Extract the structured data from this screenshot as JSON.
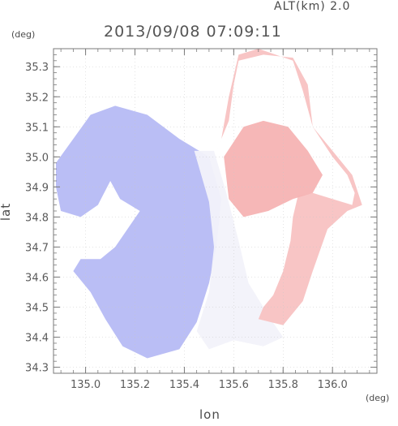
{
  "header": {
    "alt_label": "ALT(km) 2.0",
    "timestamp": "2013/09/08 07:09:11"
  },
  "colors": {
    "frame": "#7a7a7a",
    "grid": "#c8c8c8",
    "negative": "#9aa0f0",
    "neutral": "#f2f2fa",
    "positive": "#f4a0a0"
  },
  "chart_data": {
    "type": "heatmap",
    "title": "2013/09/08 07:09:11",
    "altitude_label": "ALT(km) 2.0",
    "xlabel": "lon",
    "ylabel": "lat",
    "xunit": "(deg)",
    "yunit": "(deg)",
    "xlim": [
      134.87,
      136.18
    ],
    "ylim": [
      34.28,
      35.36
    ],
    "xticks": [
      135.0,
      135.2,
      135.4,
      135.6,
      135.8,
      136.0
    ],
    "yticks": [
      34.3,
      34.4,
      34.5,
      34.6,
      34.7,
      34.8,
      34.9,
      35.0,
      35.1,
      35.2,
      35.3
    ],
    "xtick_labels": [
      "135.0",
      "135.2",
      "135.4",
      "135.6",
      "135.8",
      "136.0"
    ],
    "ytick_labels": [
      "34.3",
      "34.4",
      "34.5",
      "34.6",
      "34.7",
      "34.8",
      "34.9",
      "35.0",
      "35.1",
      "35.2",
      "35.3"
    ],
    "grid": true,
    "field_description_units": "diverging blue-white-red field; blue west of ~135.55 lon, red east",
    "regions": [
      {
        "sign": "negative",
        "strength": 0.45,
        "outline": [
          [
            134.88,
            34.98
          ],
          [
            134.95,
            35.06
          ],
          [
            135.02,
            35.14
          ],
          [
            135.12,
            35.17
          ],
          [
            135.25,
            35.14
          ],
          [
            135.38,
            35.06
          ],
          [
            135.5,
            35.0
          ],
          [
            135.55,
            34.86
          ],
          [
            135.53,
            34.7
          ],
          [
            135.5,
            34.58
          ],
          [
            135.45,
            34.45
          ],
          [
            135.38,
            34.36
          ],
          [
            135.25,
            34.33
          ],
          [
            135.15,
            34.37
          ],
          [
            135.08,
            34.46
          ],
          [
            135.02,
            34.55
          ],
          [
            134.95,
            34.62
          ],
          [
            134.98,
            34.66
          ],
          [
            135.06,
            34.66
          ],
          [
            135.12,
            34.7
          ],
          [
            135.22,
            34.82
          ],
          [
            135.14,
            34.86
          ],
          [
            135.1,
            34.92
          ],
          [
            135.05,
            34.84
          ],
          [
            134.98,
            34.8
          ],
          [
            134.9,
            34.82
          ],
          [
            134.88,
            34.9
          ]
        ]
      },
      {
        "sign": "neutral",
        "strength": 0.1,
        "outline": [
          [
            135.44,
            35.02
          ],
          [
            135.52,
            35.02
          ],
          [
            135.57,
            34.88
          ],
          [
            135.62,
            34.72
          ],
          [
            135.66,
            34.58
          ],
          [
            135.75,
            34.46
          ],
          [
            135.8,
            34.4
          ],
          [
            135.72,
            34.37
          ],
          [
            135.6,
            34.39
          ],
          [
            135.5,
            34.36
          ],
          [
            135.45,
            34.42
          ],
          [
            135.5,
            34.55
          ],
          [
            135.52,
            34.7
          ],
          [
            135.5,
            34.85
          ]
        ]
      },
      {
        "sign": "positive",
        "strength": 0.4,
        "outline": [
          [
            135.53,
            35.02
          ],
          [
            135.58,
            35.12
          ],
          [
            135.6,
            35.24
          ],
          [
            135.62,
            35.32
          ],
          [
            135.72,
            35.34
          ],
          [
            135.84,
            35.33
          ],
          [
            135.9,
            35.24
          ],
          [
            135.92,
            35.1
          ],
          [
            136.0,
            35.0
          ],
          [
            136.06,
            34.94
          ],
          [
            136.09,
            34.88
          ],
          [
            136.08,
            34.84
          ],
          [
            136.0,
            34.86
          ],
          [
            135.92,
            34.88
          ],
          [
            135.86,
            34.87
          ],
          [
            135.84,
            34.8
          ],
          [
            135.83,
            34.72
          ],
          [
            135.8,
            34.62
          ],
          [
            135.76,
            34.54
          ],
          [
            135.72,
            34.5
          ],
          [
            135.7,
            34.46
          ],
          [
            135.8,
            34.44
          ],
          [
            135.88,
            34.52
          ],
          [
            135.92,
            34.62
          ],
          [
            135.98,
            34.76
          ],
          [
            136.06,
            34.82
          ],
          [
            136.12,
            34.84
          ],
          [
            136.08,
            34.94
          ],
          [
            136.0,
            35.02
          ],
          [
            135.92,
            35.1
          ],
          [
            135.88,
            35.22
          ],
          [
            135.84,
            35.32
          ],
          [
            135.7,
            35.36
          ],
          [
            135.62,
            35.34
          ],
          [
            135.58,
            35.2
          ],
          [
            135.55,
            35.06
          ]
        ]
      },
      {
        "sign": "positive",
        "strength": 0.5,
        "outline": [
          [
            135.56,
            35.0
          ],
          [
            135.64,
            35.1
          ],
          [
            135.72,
            35.12
          ],
          [
            135.82,
            35.1
          ],
          [
            135.9,
            35.02
          ],
          [
            135.96,
            34.94
          ],
          [
            135.92,
            34.88
          ],
          [
            135.84,
            34.86
          ],
          [
            135.74,
            34.82
          ],
          [
            135.64,
            34.8
          ],
          [
            135.58,
            34.86
          ]
        ]
      }
    ]
  }
}
